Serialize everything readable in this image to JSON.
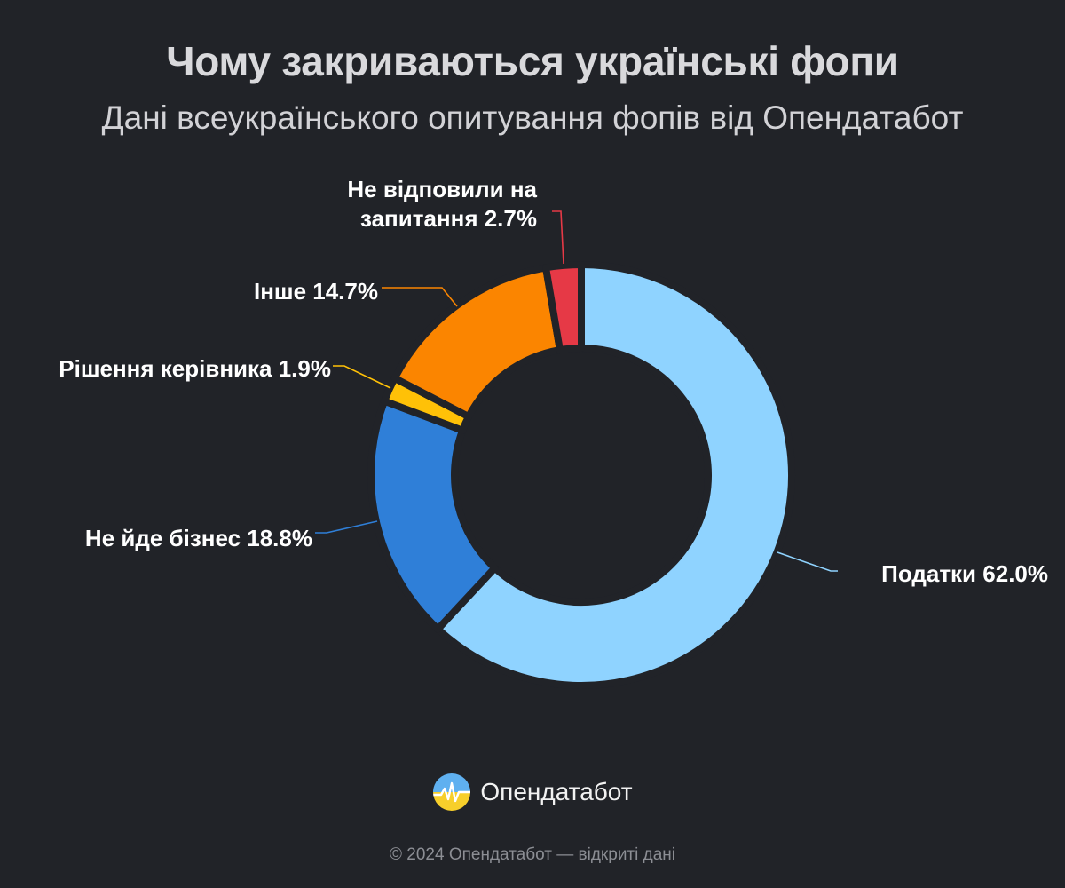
{
  "header": {
    "title": "Чому закриваються українські фопи",
    "subtitle": "Дані всеукраїнського опитування фопів від Опендатабот"
  },
  "chart_data": {
    "type": "pie",
    "variant": "donut",
    "title": "Чому закриваються українські фопи",
    "subtitle": "Дані всеукраїнського опитування фопів від Опендатабот",
    "start": "12 o'clock",
    "direction": "clockwise",
    "slices": [
      {
        "label_lines": [
          "Податки 62.0%"
        ],
        "name": "Податки",
        "value": 62.0,
        "color": "#8fd3ff"
      },
      {
        "label_lines": [
          "Не йде бізнес 18.8%"
        ],
        "name": "Не йде бізнес",
        "value": 18.8,
        "color": "#2f7fd8"
      },
      {
        "label_lines": [
          "Рішення керівника 1.9%"
        ],
        "name": "Рішення керівника",
        "value": 1.9,
        "color": "#ffc107"
      },
      {
        "label_lines": [
          "Інше 14.7%"
        ],
        "name": "Інше",
        "value": 14.7,
        "color": "#fb8500"
      },
      {
        "label_lines": [
          "Не відповили на",
          "запитання 2.7%"
        ],
        "name": "Не відповили на запитання",
        "value": 2.7,
        "color": "#e63946"
      }
    ]
  },
  "brand": {
    "name": "Опендатабот",
    "icon": "opendatabot-logo-icon"
  },
  "footer": {
    "text": "© 2024 Опендатабот — відкриті дані"
  }
}
